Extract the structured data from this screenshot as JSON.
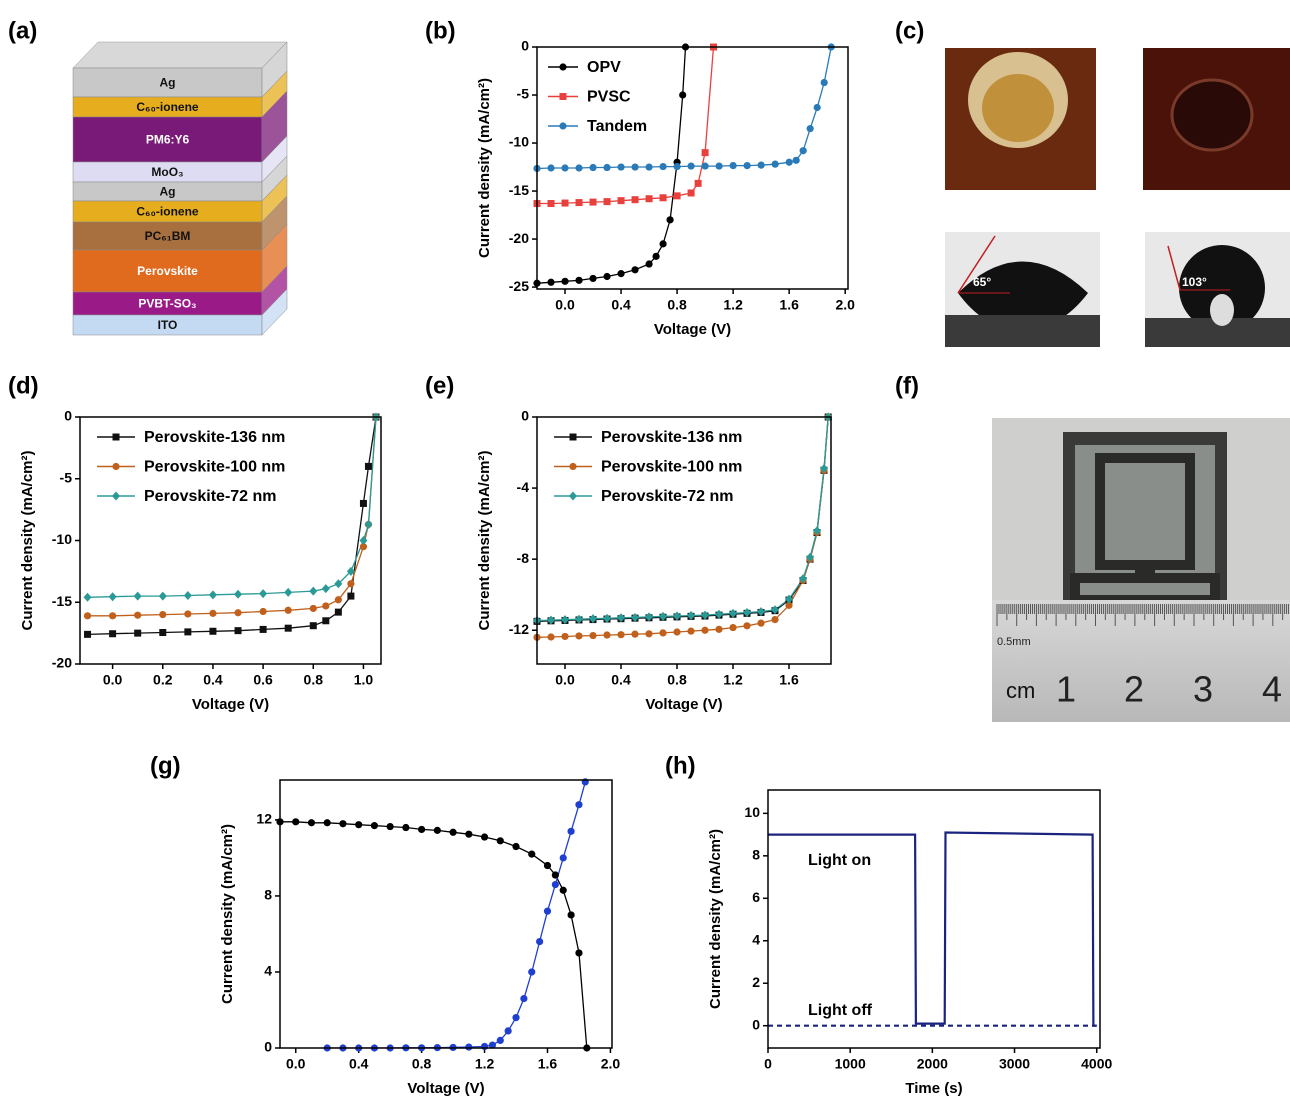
{
  "stack": {
    "panel_label": "(a)",
    "layers": [
      {
        "label": "Ag",
        "color": "#c8c8c8"
      },
      {
        "label": "C₆₀-ionene",
        "color": "#e6ae1e"
      },
      {
        "label": "PM6:Y6",
        "color": "#7a1a78"
      },
      {
        "label": "MoO₃",
        "color": "#dedcf2"
      },
      {
        "label": "Ag",
        "color": "#c8c8c8"
      },
      {
        "label": "C₆₀-ionene",
        "color": "#e6ae1e"
      },
      {
        "label": "PC₆₁BM",
        "color": "#a8703e"
      },
      {
        "label": "Perovskite",
        "color": "#e06a1e"
      },
      {
        "label": "PVBT-SO₃",
        "color": "#9a1a88"
      },
      {
        "label": "ITO",
        "color": "#c4daf2"
      }
    ]
  },
  "contact_angle": {
    "panel_label": "(c)",
    "angles": [
      "65°",
      "103°"
    ]
  },
  "photo": {
    "panel_label": "(f)",
    "scale_note": "0.5mm",
    "unit": "cm",
    "marks": [
      "1",
      "2",
      "3",
      "4"
    ]
  },
  "chart_data": [
    {
      "type": "line",
      "panel_label": "(b)",
      "xlabel": "Voltage (V)",
      "ylabel": "Current density (mA/cm²)",
      "xlim": [
        -0.2,
        2.02
      ],
      "ylim": [
        -25.2,
        0
      ],
      "xticks": [
        {
          "value": 0,
          "label": "0.0"
        },
        {
          "value": 0.4,
          "label": "0.4"
        },
        {
          "value": 0.8,
          "label": "0.8"
        },
        {
          "value": 1.2,
          "label": "1.2"
        },
        {
          "value": 1.6,
          "label": "1.6"
        },
        {
          "value": 2,
          "label": "2.0"
        }
      ],
      "yticks": [
        0,
        -5,
        -10,
        -15,
        -20,
        -25
      ],
      "legend": "upper-left",
      "series": [
        {
          "name": "OPV",
          "color": "#000000",
          "marker": "circle",
          "x": [
            -0.2,
            -0.1,
            0,
            0.1,
            0.2,
            0.3,
            0.4,
            0.5,
            0.6,
            0.65,
            0.7,
            0.75,
            0.8,
            0.84,
            0.86
          ],
          "values": [
            -24.6,
            -24.5,
            -24.4,
            -24.3,
            -24.1,
            -23.9,
            -23.6,
            -23.2,
            -22.6,
            -21.8,
            -20.5,
            -18,
            -12,
            -5,
            0
          ]
        },
        {
          "name": "PVSC",
          "color": "#e8403c",
          "marker": "square",
          "x": [
            -0.2,
            -0.1,
            0,
            0.1,
            0.2,
            0.3,
            0.4,
            0.5,
            0.6,
            0.7,
            0.8,
            0.9,
            0.95,
            1.0,
            1.06
          ],
          "values": [
            -16.3,
            -16.3,
            -16.25,
            -16.2,
            -16.15,
            -16.1,
            -16.0,
            -15.9,
            -15.8,
            -15.7,
            -15.5,
            -15.2,
            -14.2,
            -11,
            0
          ]
        },
        {
          "name": "Tandem",
          "color": "#2a7ab8",
          "marker": "circle",
          "x": [
            -0.2,
            -0.1,
            0,
            0.1,
            0.2,
            0.3,
            0.4,
            0.5,
            0.6,
            0.7,
            0.8,
            0.9,
            1.0,
            1.1,
            1.2,
            1.3,
            1.4,
            1.5,
            1.6,
            1.65,
            1.7,
            1.75,
            1.8,
            1.85,
            1.9
          ],
          "values": [
            -12.65,
            -12.6,
            -12.6,
            -12.6,
            -12.55,
            -12.55,
            -12.5,
            -12.5,
            -12.5,
            -12.45,
            -12.45,
            -12.4,
            -12.4,
            -12.4,
            -12.35,
            -12.35,
            -12.3,
            -12.2,
            -12.0,
            -11.8,
            -10.8,
            -8.5,
            -6.3,
            -3.7,
            0
          ]
        }
      ]
    },
    {
      "type": "line",
      "panel_label": "(d)",
      "xlabel": "Voltage (V)",
      "ylabel": "Current density (mA/cm²)",
      "xlim": [
        -0.13,
        1.07
      ],
      "ylim": [
        -20,
        0
      ],
      "xticks": [
        {
          "value": 0,
          "label": "0.0"
        },
        {
          "value": 0.2,
          "label": "0.2"
        },
        {
          "value": 0.4,
          "label": "0.4"
        },
        {
          "value": 0.6,
          "label": "0.6"
        },
        {
          "value": 0.8,
          "label": "0.8"
        },
        {
          "value": 1,
          "label": "1.0"
        }
      ],
      "yticks": [
        0,
        -5,
        -10,
        -15,
        -20
      ],
      "legend": "upper-left",
      "series": [
        {
          "name": "Perovskite-136 nm",
          "color": "#111111",
          "marker": "square",
          "x": [
            -0.1,
            0,
            0.1,
            0.2,
            0.3,
            0.4,
            0.5,
            0.6,
            0.7,
            0.8,
            0.85,
            0.9,
            0.95,
            1.0,
            1.02,
            1.05
          ],
          "values": [
            -17.6,
            -17.55,
            -17.5,
            -17.45,
            -17.4,
            -17.35,
            -17.3,
            -17.2,
            -17.1,
            -16.9,
            -16.5,
            -15.8,
            -14.5,
            -7,
            -4,
            0
          ]
        },
        {
          "name": "Perovskite-100 nm",
          "color": "#c0601c",
          "marker": "circle",
          "x": [
            -0.1,
            0,
            0.1,
            0.2,
            0.3,
            0.4,
            0.5,
            0.6,
            0.7,
            0.8,
            0.85,
            0.9,
            0.95,
            1.0,
            1.02,
            1.05
          ],
          "values": [
            -16.1,
            -16.1,
            -16.05,
            -16.0,
            -15.95,
            -15.9,
            -15.85,
            -15.75,
            -15.65,
            -15.5,
            -15.3,
            -14.8,
            -13.5,
            -10.5,
            -8.7,
            0
          ]
        },
        {
          "name": "Perovskite-72 nm",
          "color": "#2a9a96",
          "marker": "diamond",
          "x": [
            -0.1,
            0,
            0.1,
            0.2,
            0.3,
            0.4,
            0.5,
            0.6,
            0.7,
            0.8,
            0.85,
            0.9,
            0.95,
            1.0,
            1.02,
            1.05
          ],
          "values": [
            -14.6,
            -14.55,
            -14.5,
            -14.5,
            -14.45,
            -14.4,
            -14.35,
            -14.3,
            -14.2,
            -14.1,
            -13.9,
            -13.5,
            -12.5,
            -10,
            -8.7,
            0
          ]
        }
      ]
    },
    {
      "type": "line",
      "panel_label": "(e)",
      "xlabel": "Voltage (V)",
      "ylabel": "Current density (mA/cm²)",
      "xlim": [
        -0.2,
        1.9
      ],
      "ylim": [
        -13.9,
        0
      ],
      "xticks": [
        {
          "value": 0,
          "label": "0.0"
        },
        {
          "value": 0.4,
          "label": "0.4"
        },
        {
          "value": 0.8,
          "label": "0.8"
        },
        {
          "value": 1.2,
          "label": "1.2"
        },
        {
          "value": 1.6,
          "label": "1.6"
        },
        {
          "value": 2,
          "label": "2.0"
        }
      ],
      "yticks": [
        0,
        -4,
        -8,
        -12
      ],
      "legend": "upper-left",
      "series": [
        {
          "name": "Perovskite-136 nm",
          "color": "#111111",
          "marker": "square",
          "x": [
            -0.2,
            -0.1,
            0,
            0.1,
            0.2,
            0.3,
            0.4,
            0.5,
            0.6,
            0.7,
            0.8,
            0.9,
            1.0,
            1.1,
            1.2,
            1.3,
            1.4,
            1.5,
            1.6,
            1.7,
            1.75,
            1.8,
            1.85,
            1.88
          ],
          "values": [
            -11.5,
            -11.47,
            -11.45,
            -11.42,
            -11.4,
            -11.37,
            -11.35,
            -11.32,
            -11.3,
            -11.27,
            -11.25,
            -11.22,
            -11.2,
            -11.15,
            -11.1,
            -11.05,
            -11.0,
            -10.9,
            -10.3,
            -9.2,
            -8,
            -6.5,
            -3,
            0
          ]
        },
        {
          "name": "Perovskite-100 nm",
          "color": "#c0601c",
          "marker": "circle",
          "x": [
            -0.2,
            -0.1,
            0,
            0.1,
            0.2,
            0.3,
            0.4,
            0.5,
            0.6,
            0.7,
            0.8,
            0.9,
            1.0,
            1.1,
            1.2,
            1.3,
            1.4,
            1.5,
            1.6,
            1.7,
            1.75,
            1.8,
            1.85,
            1.88
          ],
          "values": [
            -12.4,
            -12.38,
            -12.35,
            -12.32,
            -12.3,
            -12.27,
            -12.25,
            -12.22,
            -12.2,
            -12.15,
            -12.1,
            -12.05,
            -12.0,
            -11.95,
            -11.85,
            -11.75,
            -11.6,
            -11.4,
            -10.6,
            -9.2,
            -8,
            -6.5,
            -3,
            0
          ]
        },
        {
          "name": "Perovskite-72 nm",
          "color": "#2a9a96",
          "marker": "diamond",
          "x": [
            -0.2,
            -0.1,
            0,
            0.1,
            0.2,
            0.3,
            0.4,
            0.5,
            0.6,
            0.7,
            0.8,
            0.9,
            1.0,
            1.1,
            1.2,
            1.3,
            1.4,
            1.5,
            1.6,
            1.7,
            1.75,
            1.8,
            1.85,
            1.88
          ],
          "values": [
            -11.45,
            -11.43,
            -11.4,
            -11.38,
            -11.35,
            -11.33,
            -11.3,
            -11.28,
            -11.25,
            -11.22,
            -11.2,
            -11.17,
            -11.15,
            -11.1,
            -11.05,
            -11.0,
            -10.95,
            -10.85,
            -10.25,
            -9.1,
            -7.9,
            -6.4,
            -2.9,
            0
          ]
        }
      ]
    },
    {
      "type": "line",
      "panel_label": "(g)",
      "xlabel": "Voltage (V)",
      "ylabel": "Current density (mA/cm²)",
      "xlim": [
        -0.1,
        2.01
      ],
      "ylim": [
        0,
        14.1
      ],
      "xticks": [
        {
          "value": 0,
          "label": "0.0"
        },
        {
          "value": 0.4,
          "label": "0.4"
        },
        {
          "value": 0.8,
          "label": "0.8"
        },
        {
          "value": 1.2,
          "label": "1.2"
        },
        {
          "value": 1.6,
          "label": "1.6"
        },
        {
          "value": 2,
          "label": "2.0"
        }
      ],
      "yticks": [
        0,
        4,
        8,
        12
      ],
      "series": [
        {
          "color": "#000000",
          "marker": "circle",
          "x": [
            -0.1,
            0,
            0.1,
            0.2,
            0.3,
            0.4,
            0.5,
            0.6,
            0.7,
            0.8,
            0.9,
            1.0,
            1.1,
            1.2,
            1.3,
            1.4,
            1.5,
            1.6,
            1.65,
            1.7,
            1.75,
            1.8,
            1.85
          ],
          "values": [
            11.9,
            11.9,
            11.85,
            11.85,
            11.8,
            11.75,
            11.7,
            11.65,
            11.6,
            11.5,
            11.45,
            11.35,
            11.25,
            11.1,
            10.9,
            10.6,
            10.2,
            9.6,
            9.1,
            8.3,
            7.0,
            5.0,
            0
          ]
        },
        {
          "color": "#1f3fd0",
          "marker": "circle",
          "x": [
            0.2,
            0.3,
            0.4,
            0.5,
            0.6,
            0.7,
            0.8,
            0.9,
            1.0,
            1.1,
            1.2,
            1.25,
            1.3,
            1.35,
            1.4,
            1.45,
            1.5,
            1.55,
            1.6,
            1.65,
            1.7,
            1.75,
            1.8,
            1.84
          ],
          "values": [
            0,
            0,
            0,
            0,
            0,
            0.01,
            0.01,
            0.02,
            0.03,
            0.05,
            0.08,
            0.15,
            0.4,
            0.9,
            1.6,
            2.6,
            4.0,
            5.6,
            7.2,
            8.6,
            10.0,
            11.4,
            12.8,
            14.0
          ]
        }
      ]
    },
    {
      "type": "line",
      "panel_label": "(h)",
      "xlabel": "Time (s)",
      "ylabel": "Current density (mA/cm²)",
      "xlim": [
        0,
        4040
      ],
      "ylim": [
        -1.05,
        11.1
      ],
      "xticks": [
        0,
        1000,
        2000,
        3000,
        4000
      ],
      "yticks": [
        0,
        2,
        4,
        6,
        8,
        10
      ],
      "annotations": [
        "Light on",
        "Light off"
      ],
      "series": [
        {
          "color": "#1a237e",
          "x": [
            0,
            1790,
            1800,
            2150,
            2160,
            3950,
            3960,
            4000
          ],
          "values": [
            9,
            9,
            0.1,
            0.1,
            9.1,
            9,
            0,
            0
          ]
        },
        {
          "color": "#1a237e",
          "dashed": true,
          "x": [
            0,
            4000
          ],
          "values": [
            0,
            0
          ]
        }
      ]
    }
  ]
}
